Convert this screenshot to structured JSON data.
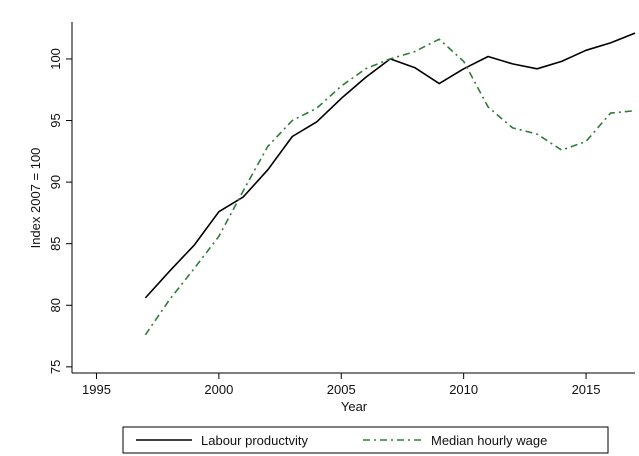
{
  "chart_data": {
    "type": "line",
    "title": "",
    "xlabel": "Year",
    "ylabel": "Index 2007 = 100",
    "xlim": [
      1994,
      2017
    ],
    "ylim": [
      74.5,
      103
    ],
    "x_ticks": [
      1995,
      2000,
      2005,
      2010,
      2015
    ],
    "y_ticks": [
      75,
      80,
      85,
      90,
      95,
      100
    ],
    "grid": false,
    "legend_position": "bottom",
    "series": [
      {
        "name": "Labour productvity",
        "color": "#000000",
        "style": "solid",
        "x": [
          1997,
          1998,
          1999,
          2000,
          2001,
          2002,
          2003,
          2004,
          2005,
          2006,
          2007,
          2008,
          2009,
          2010,
          2011,
          2012,
          2013,
          2014,
          2015,
          2016,
          2017
        ],
        "y": [
          80.6,
          82.8,
          84.9,
          87.6,
          88.8,
          91.0,
          93.7,
          94.9,
          96.8,
          98.5,
          100.0,
          99.3,
          98.0,
          99.2,
          100.2,
          99.6,
          99.2,
          99.8,
          100.7,
          101.3,
          102.1
        ]
      },
      {
        "name": "Median hourly wage",
        "color": "#2e7d32",
        "style": "dash-dot",
        "x": [
          1997,
          1998,
          1999,
          2000,
          2001,
          2002,
          2003,
          2004,
          2005,
          2006,
          2007,
          2008,
          2009,
          2010,
          2011,
          2012,
          2013,
          2014,
          2015,
          2016,
          2017
        ],
        "y": [
          77.6,
          80.5,
          83.0,
          85.6,
          89.3,
          92.9,
          95.0,
          96.0,
          97.8,
          99.2,
          100.0,
          100.6,
          101.6,
          99.8,
          96.1,
          94.4,
          93.9,
          92.6,
          93.3,
          95.6,
          95.8
        ]
      }
    ]
  }
}
